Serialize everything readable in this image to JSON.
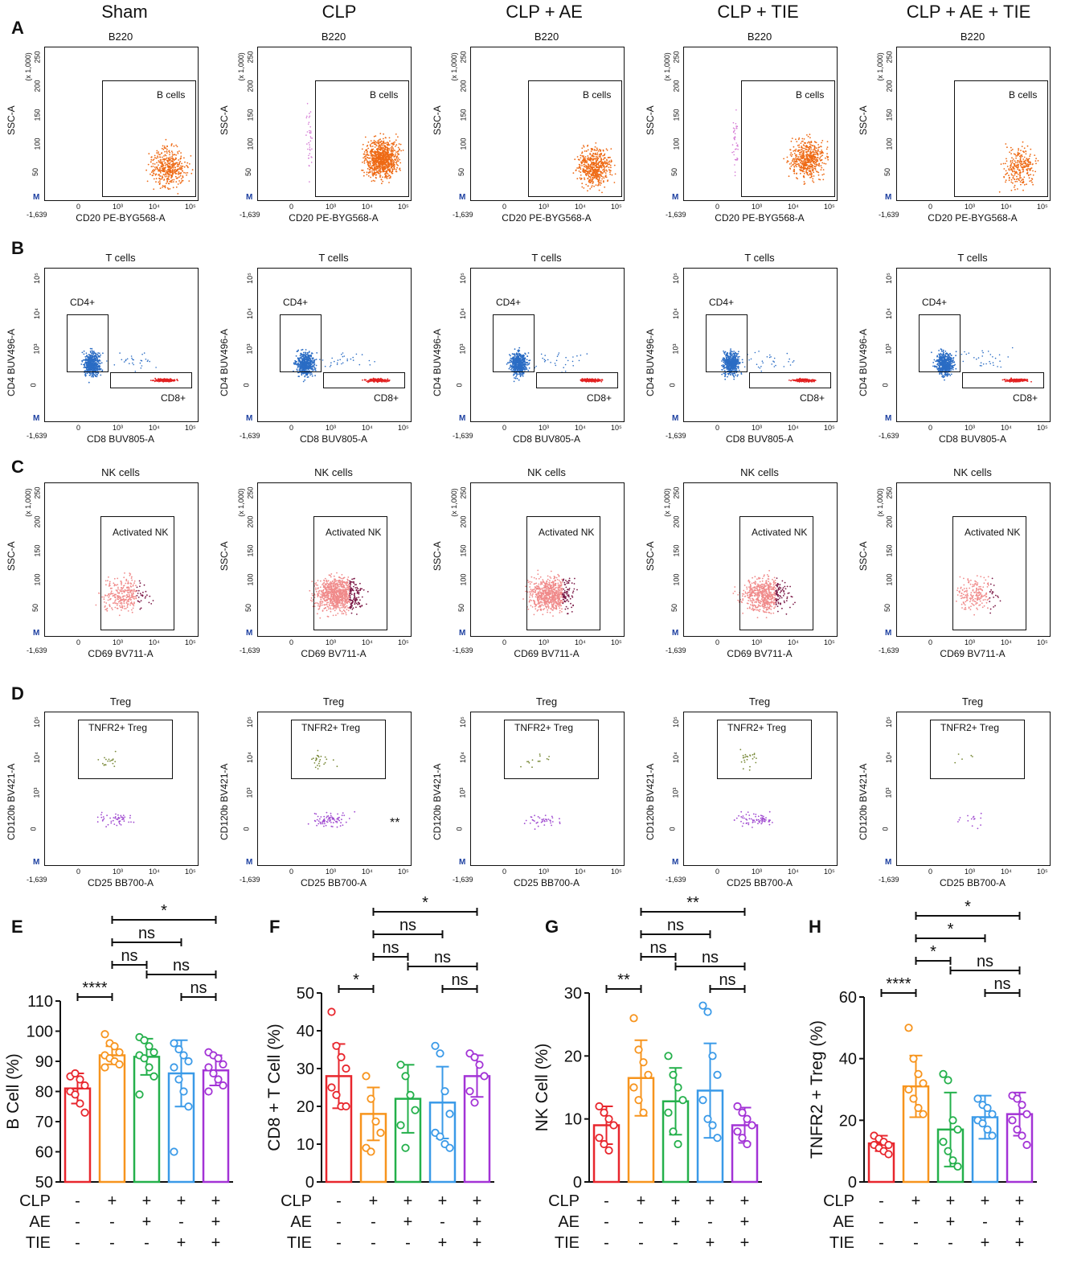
{
  "columns": [
    "Sham",
    "CLP",
    "CLP + AE",
    "CLP + TIE",
    "CLP + AE + TIE"
  ],
  "colors": {
    "sham": "#e8262d",
    "clp": "#f7941d",
    "clp_ae": "#24b04b",
    "clp_tie": "#3a9ae8",
    "clp_ae_tie": "#a333d6",
    "bcell_dot": "#ee6a15",
    "tcell_cd4": "#2a6cc4",
    "tcell_cd8": "#e22222",
    "nk_low": "#f08a8a",
    "nk_high": "#7a1745",
    "treg_low": "#a04bd0",
    "treg_high": "#7a8a3a",
    "low_gate": "#d478d4"
  },
  "rows": [
    {
      "letter": "A",
      "plot_title": "B220",
      "gate_label": "B cells",
      "xlabel": "CD20 PE-BYG568-A",
      "ylabel": "SSC-A",
      "ylabel_top": "(x 1,000)",
      "yticks": [
        "250",
        "200",
        "150",
        "100",
        "50"
      ],
      "xticks": [
        "0",
        "10³",
        "10⁴",
        "10⁵"
      ],
      "neg_label": "-1,639",
      "m_label": "M"
    },
    {
      "letter": "B",
      "plot_title": "T cells",
      "gate_label": "CD4+",
      "gate_label2": "CD8+",
      "xlabel": "CD8 BUV805-A",
      "ylabel": "CD4 BUV496-A",
      "yticks": [
        "10⁵",
        "10⁴",
        "10³",
        "0"
      ],
      "xticks": [
        "0",
        "10³",
        "10⁴",
        "10⁵"
      ],
      "neg_label": "-1,639",
      "m_label": "M"
    },
    {
      "letter": "C",
      "plot_title": "NK cells",
      "gate_label": "Activated NK",
      "xlabel": "CD69 BV711-A",
      "ylabel": "SSC-A",
      "ylabel_top": "(x 1,000)",
      "yticks": [
        "250",
        "200",
        "150",
        "100",
        "50"
      ],
      "xticks": [
        "0",
        "10³",
        "10⁴",
        "10⁵"
      ],
      "neg_label": "-1,639",
      "m_label": "M"
    },
    {
      "letter": "D",
      "plot_title": "Treg",
      "gate_label": "TNFR2+ Treg",
      "xlabel": "CD25 BB700-A",
      "ylabel": "CD120b BV421-A",
      "yticks": [
        "10⁵",
        "10⁴",
        "10³",
        "0"
      ],
      "xticks": [
        "0",
        "10³",
        "10⁴",
        "10⁵"
      ],
      "neg_label": "-1,639",
      "m_label": "M",
      "annotation": "**"
    }
  ],
  "condition_labels": {
    "clp": "CLP",
    "ae": "AE",
    "tie": "TIE",
    "clp_signs": [
      "-",
      "+",
      "+",
      "+",
      "+"
    ],
    "ae_signs": [
      "-",
      "-",
      "+",
      "-",
      "+"
    ],
    "tie_signs": [
      "-",
      "-",
      "-",
      "+",
      "+"
    ]
  },
  "chart_data": [
    {
      "type": "bar",
      "panel": "E",
      "ylabel": "B Cell (%)",
      "ylim": [
        50,
        110
      ],
      "yticks": [
        50,
        60,
        70,
        80,
        90,
        100,
        110
      ],
      "categories": [
        "Sham",
        "CLP",
        "CLP + AE",
        "CLP + TIE",
        "CLP + AE + TIE"
      ],
      "values": [
        81,
        92,
        91.5,
        86,
        87
      ],
      "errors": [
        5,
        3,
        6,
        11,
        5
      ],
      "points": [
        [
          85,
          86,
          84,
          82,
          80,
          79,
          76,
          73
        ],
        [
          99,
          96,
          95,
          93,
          92,
          91,
          90,
          89,
          88
        ],
        [
          98,
          97,
          95,
          93,
          92,
          91,
          88,
          85,
          79
        ],
        [
          96,
          94,
          92,
          90,
          88,
          84,
          80,
          75,
          60
        ],
        [
          93,
          92,
          91,
          89,
          88,
          86,
          84,
          82,
          80
        ]
      ],
      "comparisons": [
        {
          "from": 0,
          "to": 1,
          "label": "****",
          "level": 0
        },
        {
          "from": 1,
          "to": 2,
          "label": "ns",
          "level": 1
        },
        {
          "from": 1,
          "to": 3,
          "label": "ns",
          "level": 2
        },
        {
          "from": 1,
          "to": 4,
          "label": "*",
          "level": 3
        },
        {
          "from": 3,
          "to": 4,
          "label": "ns",
          "level": 0
        },
        {
          "from": 2,
          "to": 4,
          "label": "ns",
          "level": 1
        }
      ]
    },
    {
      "type": "bar",
      "panel": "F",
      "ylabel": "CD8 + T Cell (%)",
      "ylim": [
        0,
        50
      ],
      "yticks": [
        0,
        10,
        20,
        30,
        40,
        50
      ],
      "categories": [
        "Sham",
        "CLP",
        "CLP + AE",
        "CLP + TIE",
        "CLP + AE + TIE"
      ],
      "values": [
        28,
        18,
        22,
        21,
        28
      ],
      "errors": [
        8.5,
        7,
        9,
        9.5,
        5.5
      ],
      "points": [
        [
          45,
          36,
          33,
          30,
          25,
          23,
          20,
          20
        ],
        [
          28,
          22,
          16,
          13,
          9,
          8
        ],
        [
          31,
          28,
          23,
          19,
          15,
          9
        ],
        [
          36,
          34,
          24,
          18,
          13,
          12,
          10,
          9
        ],
        [
          34,
          33,
          31,
          28,
          24,
          21
        ]
      ],
      "comparisons": [
        {
          "from": 0,
          "to": 1,
          "label": "*",
          "level": 0
        },
        {
          "from": 1,
          "to": 2,
          "label": "ns",
          "level": 1
        },
        {
          "from": 1,
          "to": 3,
          "label": "ns",
          "level": 2
        },
        {
          "from": 1,
          "to": 4,
          "label": "*",
          "level": 3
        },
        {
          "from": 3,
          "to": 4,
          "label": "ns",
          "level": 0
        },
        {
          "from": 2,
          "to": 4,
          "label": "ns",
          "level": 1
        }
      ]
    },
    {
      "type": "bar",
      "panel": "G",
      "ylabel": "NK Cell (%)",
      "ylim": [
        0,
        30
      ],
      "yticks": [
        0,
        10,
        20,
        30
      ],
      "categories": [
        "Sham",
        "CLP",
        "CLP + AE",
        "CLP + TIE",
        "CLP + AE + TIE"
      ],
      "values": [
        9,
        16.5,
        12.8,
        14.5,
        9
      ],
      "errors": [
        3,
        6,
        5.3,
        7.5,
        2.8
      ],
      "points": [
        [
          12,
          11,
          10,
          9,
          7,
          6,
          5
        ],
        [
          26,
          21,
          19,
          17,
          15,
          13,
          11
        ],
        [
          20,
          17,
          15,
          13,
          11,
          8,
          6
        ],
        [
          28,
          27,
          20,
          17,
          13,
          10,
          9,
          7
        ],
        [
          12,
          11,
          10,
          9,
          8,
          7,
          6
        ]
      ],
      "comparisons": [
        {
          "from": 0,
          "to": 1,
          "label": "**",
          "level": 0
        },
        {
          "from": 1,
          "to": 2,
          "label": "ns",
          "level": 1
        },
        {
          "from": 1,
          "to": 3,
          "label": "ns",
          "level": 2
        },
        {
          "from": 1,
          "to": 4,
          "label": "**",
          "level": 3
        },
        {
          "from": 3,
          "to": 4,
          "label": "ns",
          "level": 0
        },
        {
          "from": 2,
          "to": 4,
          "label": "ns",
          "level": 1
        }
      ]
    },
    {
      "type": "bar",
      "panel": "H",
      "ylabel": "TNFR2 + Treg (%)",
      "ylim": [
        0,
        60
      ],
      "yticks": [
        0,
        20,
        40,
        60
      ],
      "categories": [
        "Sham",
        "CLP",
        "CLP + AE",
        "CLP + TIE",
        "CLP + AE + TIE"
      ],
      "values": [
        12.5,
        31,
        17,
        21,
        22
      ],
      "errors": [
        2.5,
        10,
        12,
        7,
        7
      ],
      "points": [
        [
          15,
          14,
          13,
          12,
          12,
          11,
          10,
          9
        ],
        [
          50,
          40,
          35,
          32,
          30,
          27,
          24,
          22
        ],
        [
          35,
          33,
          20,
          17,
          13,
          10,
          7,
          5
        ],
        [
          27,
          25,
          24,
          22,
          20,
          19,
          17,
          15
        ],
        [
          28,
          27,
          25,
          22,
          20,
          17,
          15,
          12
        ]
      ],
      "comparisons": [
        {
          "from": 0,
          "to": 1,
          "label": "****",
          "level": 0
        },
        {
          "from": 1,
          "to": 2,
          "label": "*",
          "level": 1
        },
        {
          "from": 1,
          "to": 3,
          "label": "*",
          "level": 2
        },
        {
          "from": 1,
          "to": 4,
          "label": "*",
          "level": 3
        },
        {
          "from": 3,
          "to": 4,
          "label": "ns",
          "level": 0
        },
        {
          "from": 2,
          "to": 4,
          "label": "ns",
          "level": 1
        }
      ]
    }
  ]
}
